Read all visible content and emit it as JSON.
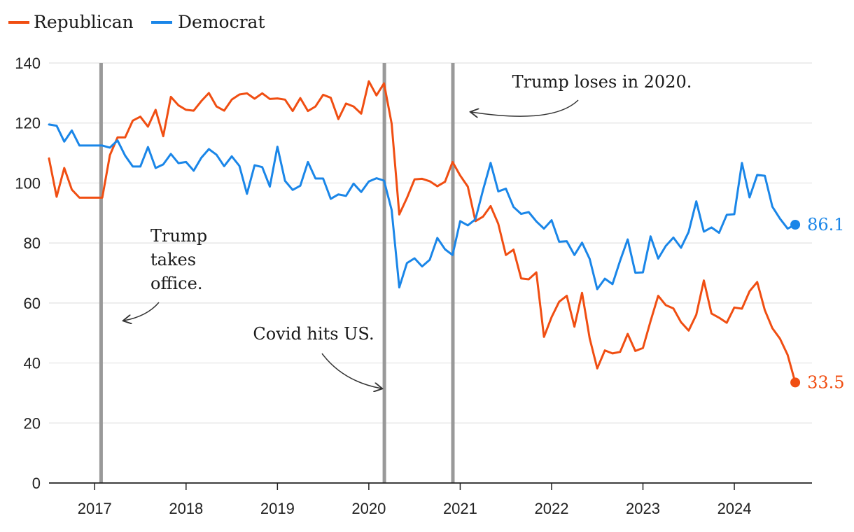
{
  "chart_data": {
    "type": "line",
    "title": "",
    "xlabel": "",
    "ylabel": "",
    "ylim": [
      0,
      140
    ],
    "xlim": [
      2016.5,
      2024.85
    ],
    "yticks": [
      "0",
      "20",
      "40",
      "60",
      "80",
      "100",
      "120",
      "140"
    ],
    "xticks": [
      "2017",
      "2018",
      "2019",
      "2020",
      "2021",
      "2022",
      "2023",
      "2024"
    ],
    "grid": true,
    "legend": {
      "position": "top-left"
    },
    "colors": {
      "republican": "#f04e12",
      "democrat": "#1a86e8",
      "event_line": "#999999",
      "grid": "#e2e2e2",
      "axis": "#222222"
    },
    "series": [
      {
        "name": "Republican",
        "color": "#f04e12",
        "x_start": 2016.5,
        "step_months": 1,
        "values": [
          108.2,
          95.4,
          105,
          97.8,
          95.1,
          95.1,
          95.1,
          95.1,
          109.3,
          115.2,
          115.2,
          120.8,
          122.1,
          118.8,
          124.4,
          115.6,
          128.7,
          125.9,
          124.4,
          124.1,
          127.3,
          130,
          125.5,
          124.1,
          127.8,
          129.5,
          129.9,
          128.1,
          129.9,
          128,
          128.2,
          127.8,
          124,
          128.3,
          124,
          125.5,
          129.4,
          128.4,
          121.3,
          126.5,
          125.5,
          123.1,
          133.9,
          129.2,
          133.2,
          119.8,
          89.5,
          95,
          101.2,
          101.4,
          100.6,
          98.9,
          100.4,
          107,
          102.5,
          98.8,
          87.3,
          88.8,
          92.3,
          86.4,
          76,
          77.8,
          68.2,
          67.9,
          70.2,
          48.7,
          55.3,
          60.4,
          62.4,
          52.1,
          63.4,
          48.2,
          38.2,
          44.2,
          43.2,
          43.7,
          49.7,
          44,
          45,
          54,
          62.4,
          59.3,
          58.2,
          53.6,
          50.8,
          56.1,
          67.5,
          56.5,
          55.1,
          53.4,
          58.5,
          58.1,
          63.9,
          67,
          57.6,
          51.6,
          48.1,
          42.7,
          33.5
        ],
        "end_label": "33.5"
      },
      {
        "name": "Democrat",
        "color": "#1a86e8",
        "x_start": 2016.5,
        "step_months": 1,
        "values": [
          119.5,
          119.1,
          113.8,
          117.5,
          112.5,
          112.5,
          112.5,
          112.5,
          111.8,
          114.2,
          109.1,
          105.5,
          105.5,
          112,
          105,
          106.2,
          109.7,
          106.6,
          107,
          104.1,
          108.4,
          111.3,
          109.4,
          105.6,
          108.9,
          105.7,
          96.4,
          105.9,
          105.3,
          98.8,
          112.1,
          100.7,
          97.7,
          99.1,
          107,
          101.5,
          101.5,
          94.7,
          96.2,
          95.7,
          99.8,
          97,
          100.5,
          101.6,
          100.8,
          91,
          65.2,
          73.3,
          74.9,
          72.2,
          74.4,
          81.7,
          77.9,
          76,
          87.3,
          85.9,
          87.9,
          97.7,
          106.7,
          97.2,
          98.1,
          92,
          89.7,
          90.3,
          87.2,
          84.8,
          87.6,
          80.4,
          80.6,
          76,
          80.1,
          74.7,
          64.6,
          68.1,
          66.3,
          74.1,
          81.2,
          70.1,
          70.2,
          82.2,
          74.8,
          79,
          81.8,
          78.4,
          83.7,
          93.9,
          83.8,
          85.2,
          83.4,
          89.4,
          89.6,
          106.7,
          95.2,
          102.7,
          102.4,
          92.1,
          88.1,
          84.8,
          86.1
        ],
        "end_label": "86.1"
      }
    ],
    "events": [
      {
        "x": 2017.07,
        "annotation": [
          "Trump",
          "takes",
          "office."
        ]
      },
      {
        "x": 2020.17,
        "annotation": [
          "Covid hits US."
        ]
      },
      {
        "x": 2020.92,
        "annotation": [
          "Trump loses in 2020."
        ]
      }
    ]
  },
  "legend": {
    "republican_label": "Republican",
    "democrat_label": "Democrat"
  }
}
